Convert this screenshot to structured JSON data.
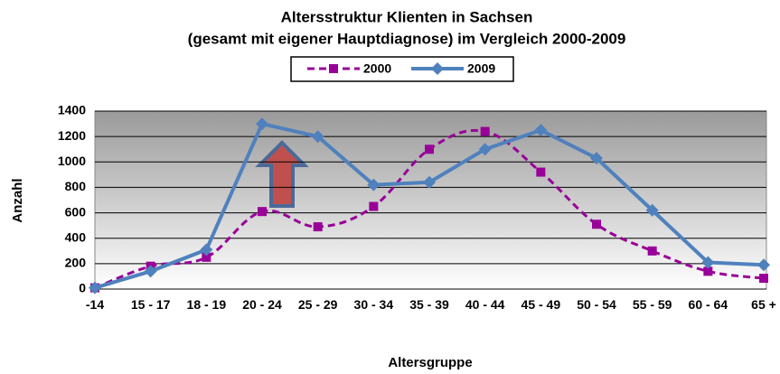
{
  "chart_data": {
    "type": "line",
    "title": "Altersstruktur Klienten in Sachsen",
    "subtitle": "(gesamt mit eigener Hauptdiagnose) im Vergleich 2000-2009",
    "x_label": "Altersgruppe",
    "y_label": "Anzahl",
    "categories": [
      "-14",
      "15 - 17",
      "18 - 19",
      "20 - 24",
      "25 - 29",
      "30 - 34",
      "35 - 39",
      "40 - 44",
      "45 - 49",
      "50 - 54",
      "55 - 59",
      "60 - 64",
      "65 +"
    ],
    "series": [
      {
        "name": "2000",
        "color": "#990099",
        "values": [
          10,
          180,
          250,
          610,
          490,
          650,
          1100,
          1240,
          920,
          510,
          300,
          140,
          85
        ]
      },
      {
        "name": "2009",
        "color": "#4f81bd",
        "values": [
          10,
          140,
          310,
          1300,
          1200,
          820,
          840,
          1100,
          1250,
          1030,
          620,
          210,
          190
        ]
      }
    ],
    "ylim": [
      0,
      1400
    ],
    "yticks": [
      0,
      200,
      400,
      600,
      800,
      1000,
      1200,
      1400
    ],
    "grid": true
  }
}
